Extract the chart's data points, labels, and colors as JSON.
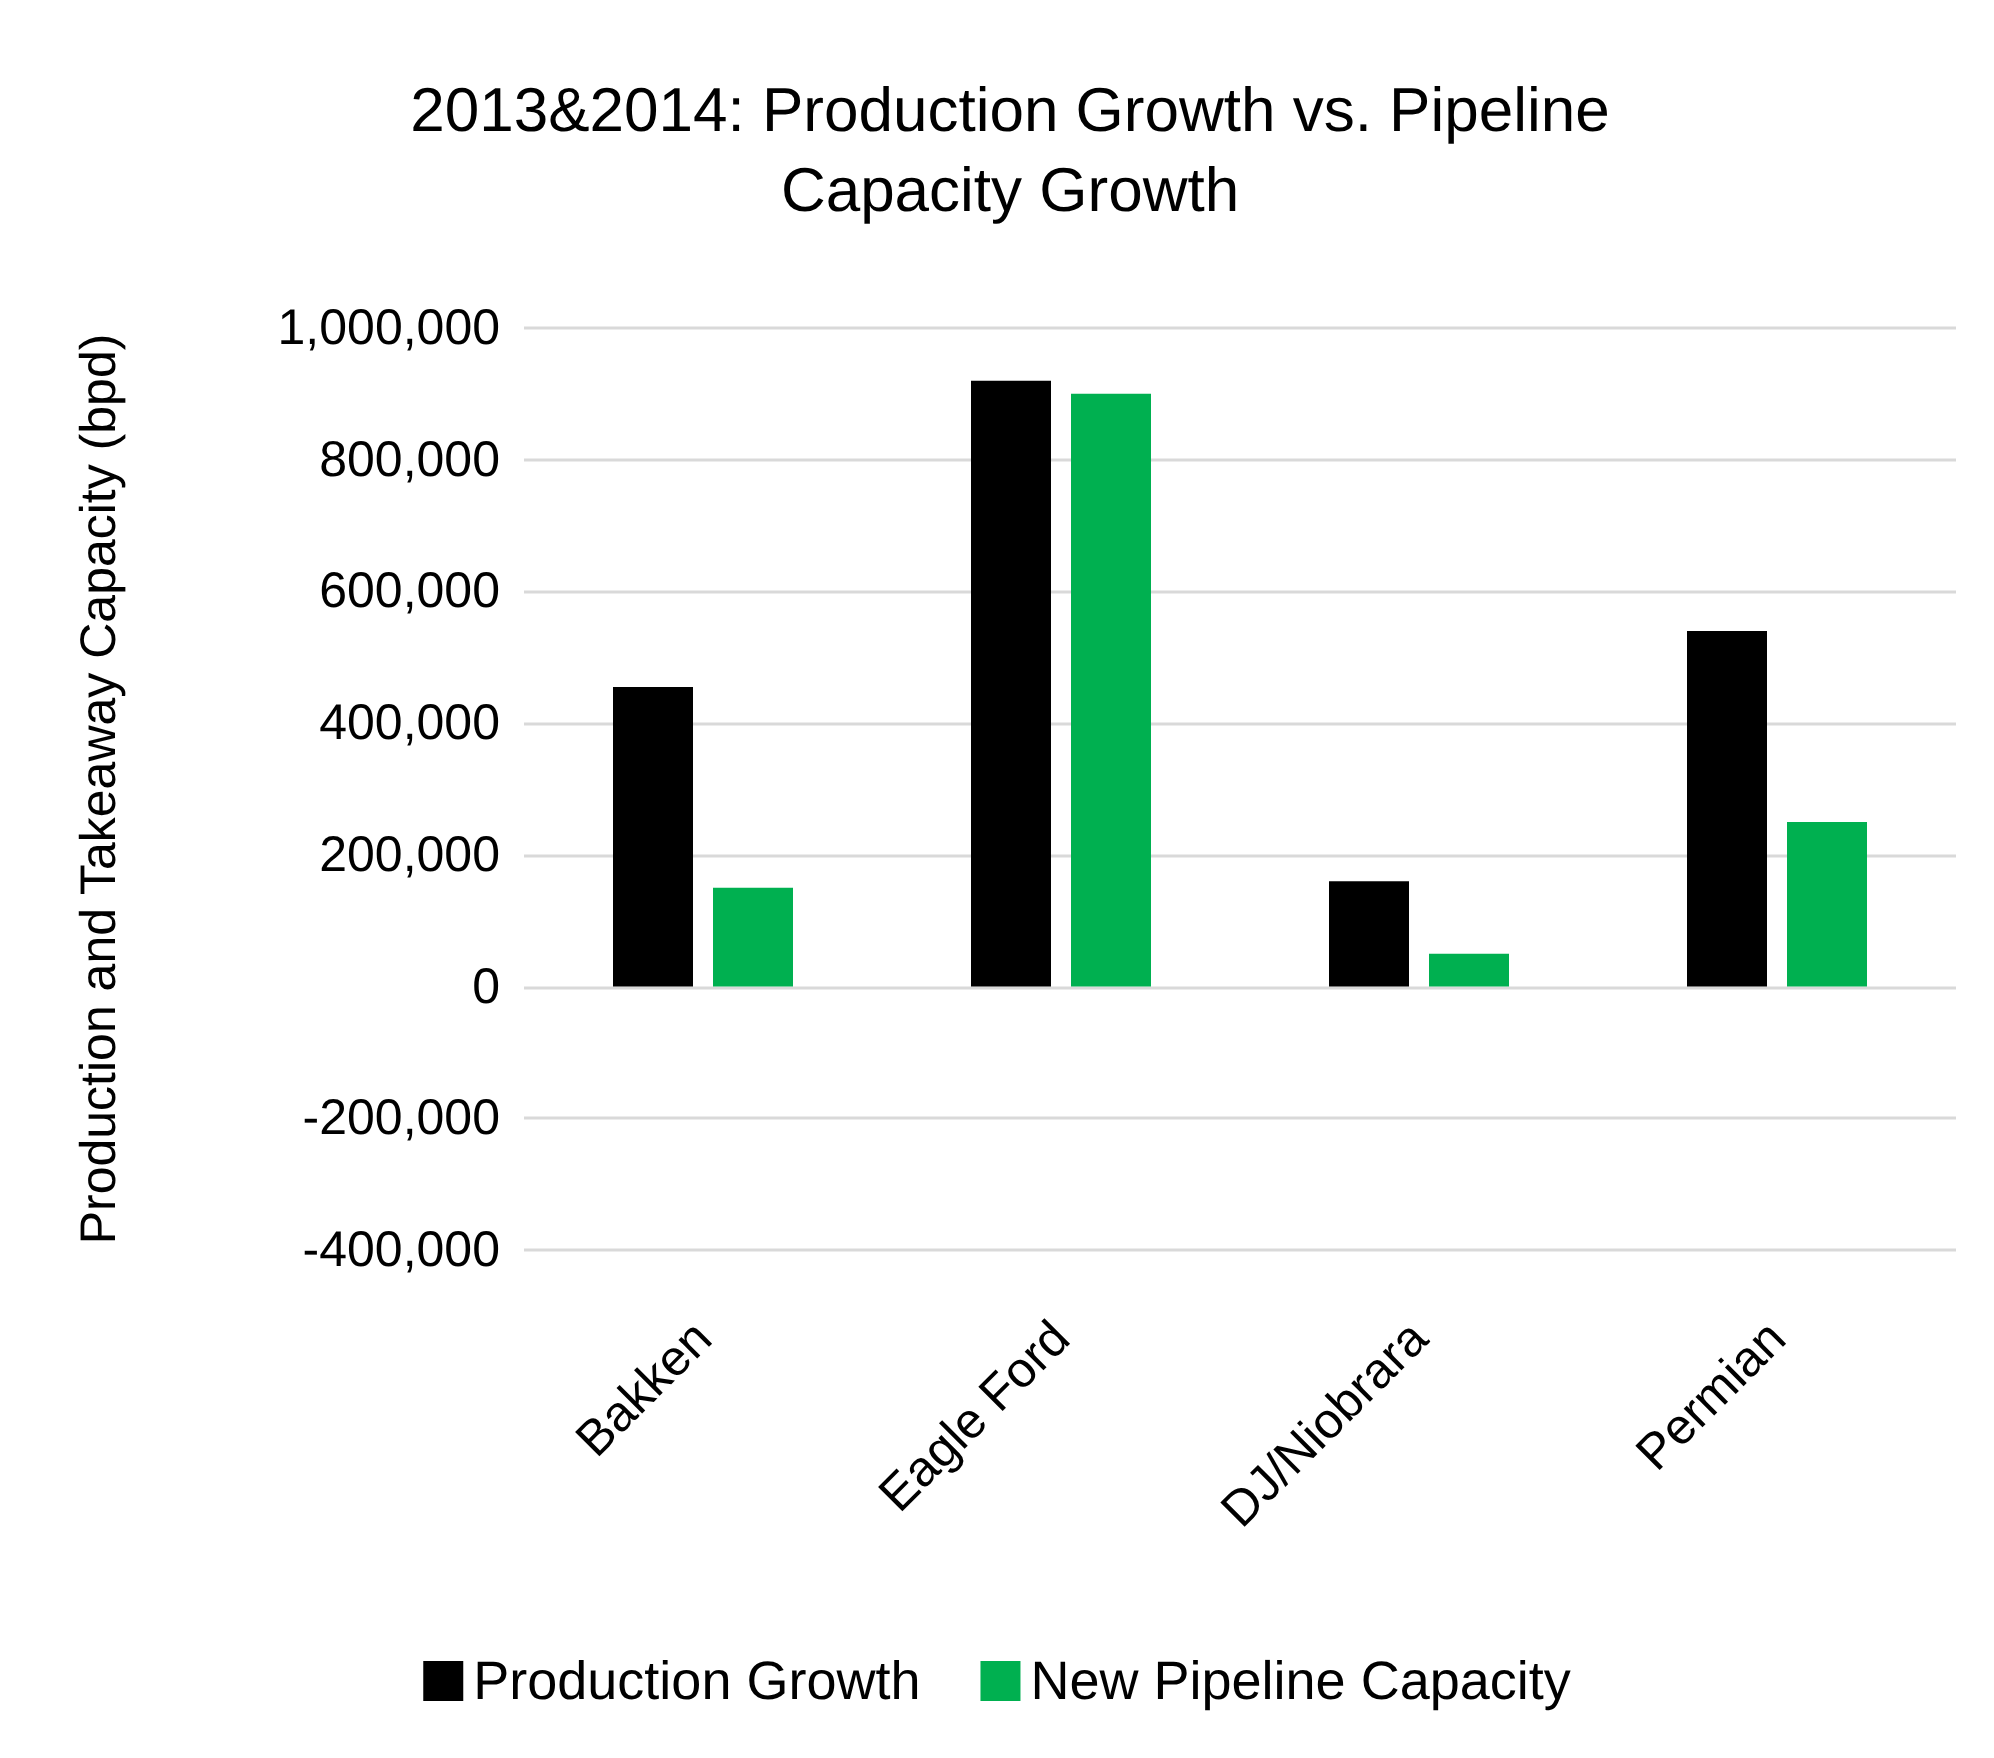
{
  "chart_data": {
    "type": "bar",
    "title": "2013&2014: Production Growth vs. Pipeline\nCapacity Growth",
    "ylabel": "Production and Takeaway Capacity (bpd)",
    "categories": [
      "Bakken",
      "Eagle Ford",
      "DJ/Niobrara",
      "Permian"
    ],
    "series": [
      {
        "name": "Production Growth",
        "color": "#000000",
        "values": [
          455000,
          920000,
          160000,
          540000
        ]
      },
      {
        "name": "New Pipeline Capacity",
        "color": "#00b050",
        "values": [
          150000,
          900000,
          50000,
          250000
        ]
      }
    ],
    "ylim": [
      -400000,
      1000000
    ],
    "yticks": [
      {
        "value": -400000,
        "label": "-400,000"
      },
      {
        "value": -200000,
        "label": "-200,000"
      },
      0,
      {
        "value": 200000,
        "label": "200,000"
      },
      {
        "value": 400000,
        "label": "400,000"
      },
      {
        "value": 600000,
        "label": "600,000"
      },
      {
        "value": 800000,
        "label": "800,000"
      },
      {
        "value": 1000000,
        "label": "1,000,000"
      }
    ],
    "grid": "y",
    "legend": "bottom"
  }
}
